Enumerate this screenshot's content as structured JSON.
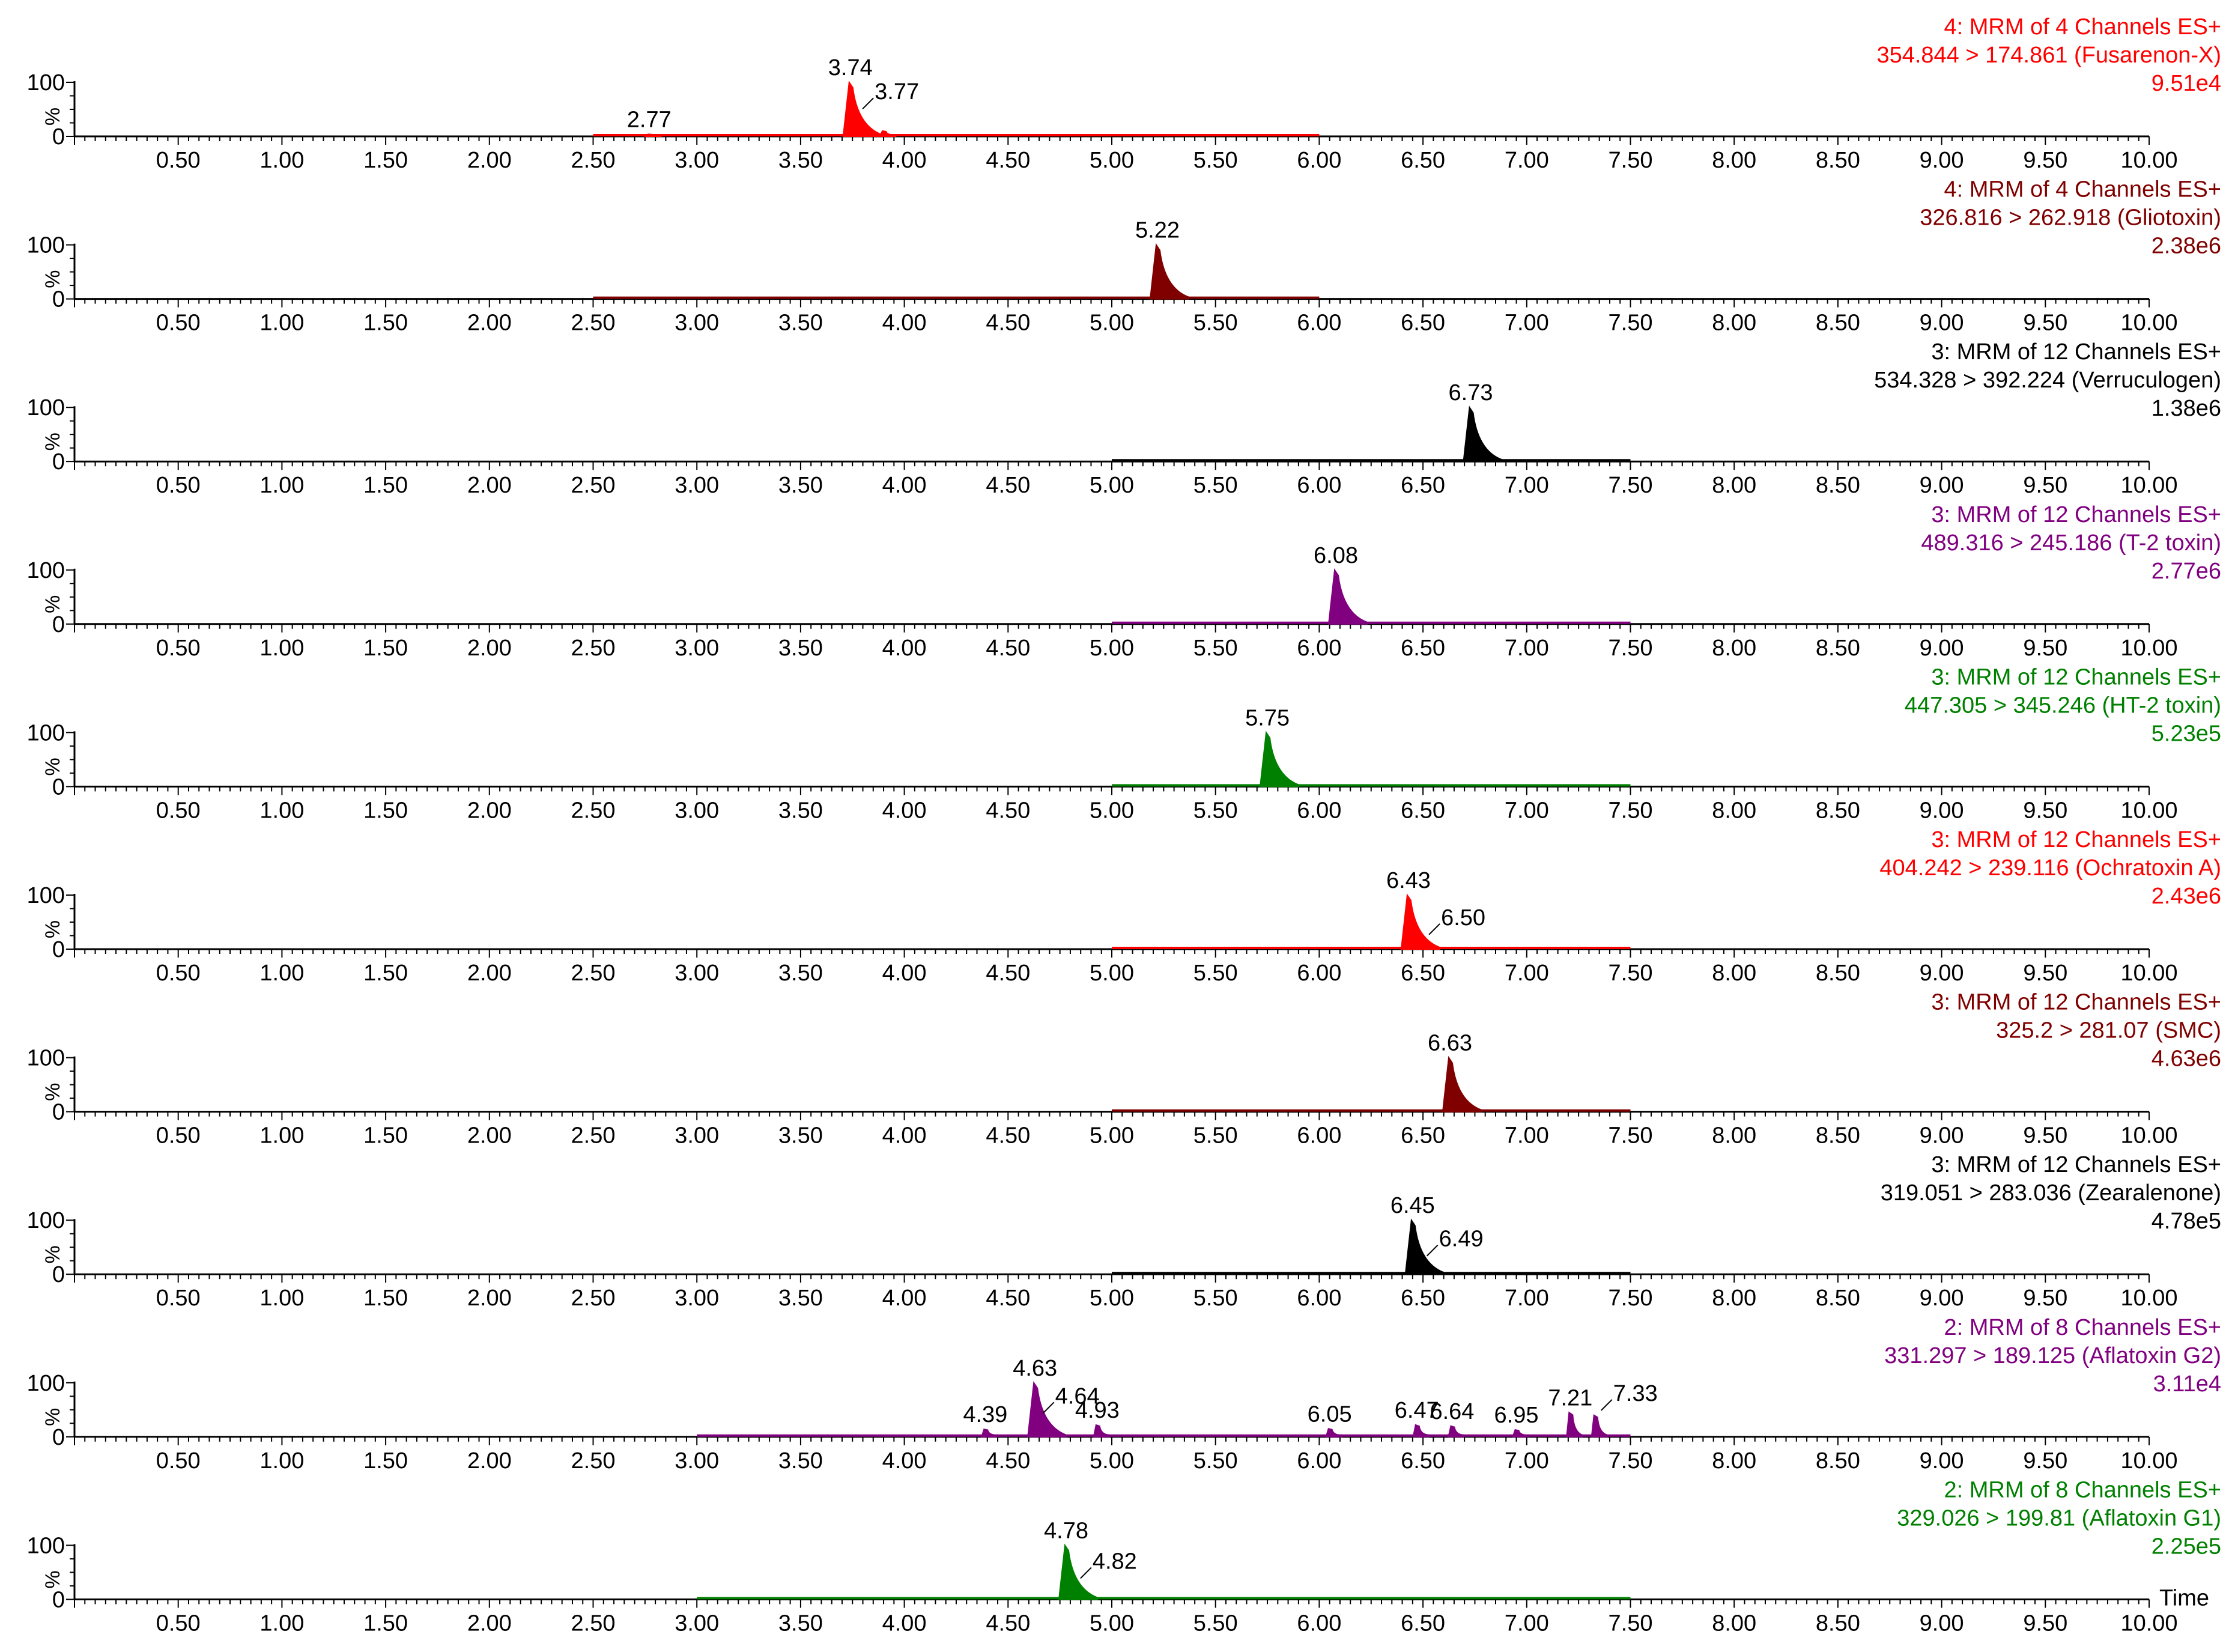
{
  "time_label": "Time",
  "chart_data": [
    {
      "type": "line",
      "header": [
        "4: MRM of 4 Channels ES+",
        "354.844 > 174.861 (Fusarenon-X)",
        "9.51e4"
      ],
      "color": "#ff0000",
      "xlim": [
        0,
        10.0
      ],
      "ylim": [
        0,
        100
      ],
      "ylabel": "%",
      "yticks": [
        "0",
        "100"
      ],
      "trace_range": [
        2.5,
        6.0
      ],
      "peaks": [
        {
          "x": 2.77,
          "y": 4,
          "label": "2.77"
        },
        {
          "x": 3.74,
          "y": 100,
          "label": "3.74"
        },
        {
          "x": 3.77,
          "y": 42,
          "label": "3.77"
        },
        {
          "x": 3.9,
          "y": 10
        }
      ]
    },
    {
      "type": "line",
      "header": [
        "4: MRM of 4 Channels ES+",
        "326.816 > 262.918 (Gliotoxin)",
        "2.38e6"
      ],
      "color": "#800000",
      "xlim": [
        0,
        10.0
      ],
      "ylim": [
        0,
        100
      ],
      "ylabel": "%",
      "yticks": [
        "0",
        "100"
      ],
      "trace_range": [
        2.5,
        6.0
      ],
      "peaks": [
        {
          "x": 5.22,
          "y": 100,
          "label": "5.22"
        }
      ]
    },
    {
      "type": "line",
      "header": [
        "3: MRM of 12 Channels ES+",
        "534.328 > 392.224 (Verruculogen)",
        "1.38e6"
      ],
      "color": "#000000",
      "xlim": [
        0,
        10.0
      ],
      "ylim": [
        0,
        100
      ],
      "ylabel": "%",
      "yticks": [
        "0",
        "100"
      ],
      "trace_range": [
        5.0,
        7.5
      ],
      "peaks": [
        {
          "x": 6.73,
          "y": 100,
          "label": "6.73"
        }
      ]
    },
    {
      "type": "line",
      "header": [
        "3: MRM of 12 Channels ES+",
        "489.316 > 245.186 (T-2 toxin)",
        "2.77e6"
      ],
      "color": "#800080",
      "xlim": [
        0,
        10.0
      ],
      "ylim": [
        0,
        100
      ],
      "ylabel": "%",
      "yticks": [
        "0",
        "100"
      ],
      "trace_range": [
        5.0,
        7.5
      ],
      "peaks": [
        {
          "x": 6.08,
          "y": 100,
          "label": "6.08"
        }
      ]
    },
    {
      "type": "line",
      "header": [
        "3: MRM of 12 Channels ES+",
        "447.305 > 345.246 (HT-2 toxin)",
        "5.23e5"
      ],
      "color": "#008000",
      "xlim": [
        0,
        10.0
      ],
      "ylim": [
        0,
        100
      ],
      "ylabel": "%",
      "yticks": [
        "0",
        "100"
      ],
      "trace_range": [
        5.0,
        7.5
      ],
      "peaks": [
        {
          "x": 5.75,
          "y": 100,
          "label": "5.75"
        }
      ]
    },
    {
      "type": "line",
      "header": [
        "3: MRM of 12 Channels ES+",
        "404.242 > 239.116 (Ochratoxin A)",
        "2.43e6"
      ],
      "color": "#ff0000",
      "xlim": [
        0,
        10.0
      ],
      "ylim": [
        0,
        100
      ],
      "ylabel": "%",
      "yticks": [
        "0",
        "100"
      ],
      "trace_range": [
        5.0,
        7.5
      ],
      "peaks": [
        {
          "x": 6.43,
          "y": 100,
          "label": "6.43"
        },
        {
          "x": 6.5,
          "y": 18,
          "label": "6.50"
        }
      ]
    },
    {
      "type": "line",
      "header": [
        "3: MRM of 12 Channels ES+",
        "325.2 > 281.07 (SMC)",
        "4.63e6"
      ],
      "color": "#800000",
      "xlim": [
        0,
        10.0
      ],
      "ylim": [
        0,
        100
      ],
      "ylabel": "%",
      "yticks": [
        "0",
        "100"
      ],
      "trace_range": [
        5.0,
        7.5
      ],
      "peaks": [
        {
          "x": 6.63,
          "y": 100,
          "label": "6.63"
        }
      ]
    },
    {
      "type": "line",
      "header": [
        "3: MRM of 12 Channels ES+",
        "319.051 > 283.036 (Zearalenone)",
        "4.78e5"
      ],
      "color": "#000000",
      "xlim": [
        0,
        10.0
      ],
      "ylim": [
        0,
        100
      ],
      "ylabel": "%",
      "yticks": [
        "0",
        "100"
      ],
      "trace_range": [
        5.0,
        7.5
      ],
      "peaks": [
        {
          "x": 6.45,
          "y": 100,
          "label": "6.45"
        },
        {
          "x": 6.49,
          "y": 25,
          "label": "6.49"
        }
      ]
    },
    {
      "type": "line",
      "header": [
        "2: MRM of 8 Channels ES+",
        "331.297 > 189.125 (Aflatoxin G2)",
        "3.11e4"
      ],
      "color": "#800080",
      "xlim": [
        0,
        10.0
      ],
      "ylim": [
        0,
        100
      ],
      "ylabel": "%",
      "yticks": [
        "0",
        "100"
      ],
      "trace_range": [
        3.0,
        7.5
      ],
      "peaks": [
        {
          "x": 4.39,
          "y": 14,
          "label": "4.39"
        },
        {
          "x": 4.63,
          "y": 100,
          "label": "4.63"
        },
        {
          "x": 4.64,
          "y": 35,
          "label": "4.64"
        },
        {
          "x": 4.93,
          "y": 22,
          "label": "4.93"
        },
        {
          "x": 6.05,
          "y": 15,
          "label": "6.05"
        },
        {
          "x": 6.47,
          "y": 22,
          "label": "6.47"
        },
        {
          "x": 6.64,
          "y": 20,
          "label": "6.64"
        },
        {
          "x": 6.95,
          "y": 13,
          "label": "6.95"
        },
        {
          "x": 7.21,
          "y": 45,
          "label": "7.21"
        },
        {
          "x": 7.33,
          "y": 40,
          "label": "7.33"
        }
      ]
    },
    {
      "type": "line",
      "header": [
        "2: MRM of 8 Channels ES+",
        "329.026 > 199.81 (Aflatoxin G1)",
        "2.25e5"
      ],
      "color": "#008000",
      "xlim": [
        0,
        10.0
      ],
      "ylim": [
        0,
        100
      ],
      "ylabel": "%",
      "yticks": [
        "0",
        "100"
      ],
      "trace_range": [
        3.0,
        7.5
      ],
      "peaks": [
        {
          "x": 4.78,
          "y": 100,
          "label": "4.78"
        },
        {
          "x": 4.82,
          "y": 30,
          "label": "4.82"
        }
      ]
    }
  ]
}
